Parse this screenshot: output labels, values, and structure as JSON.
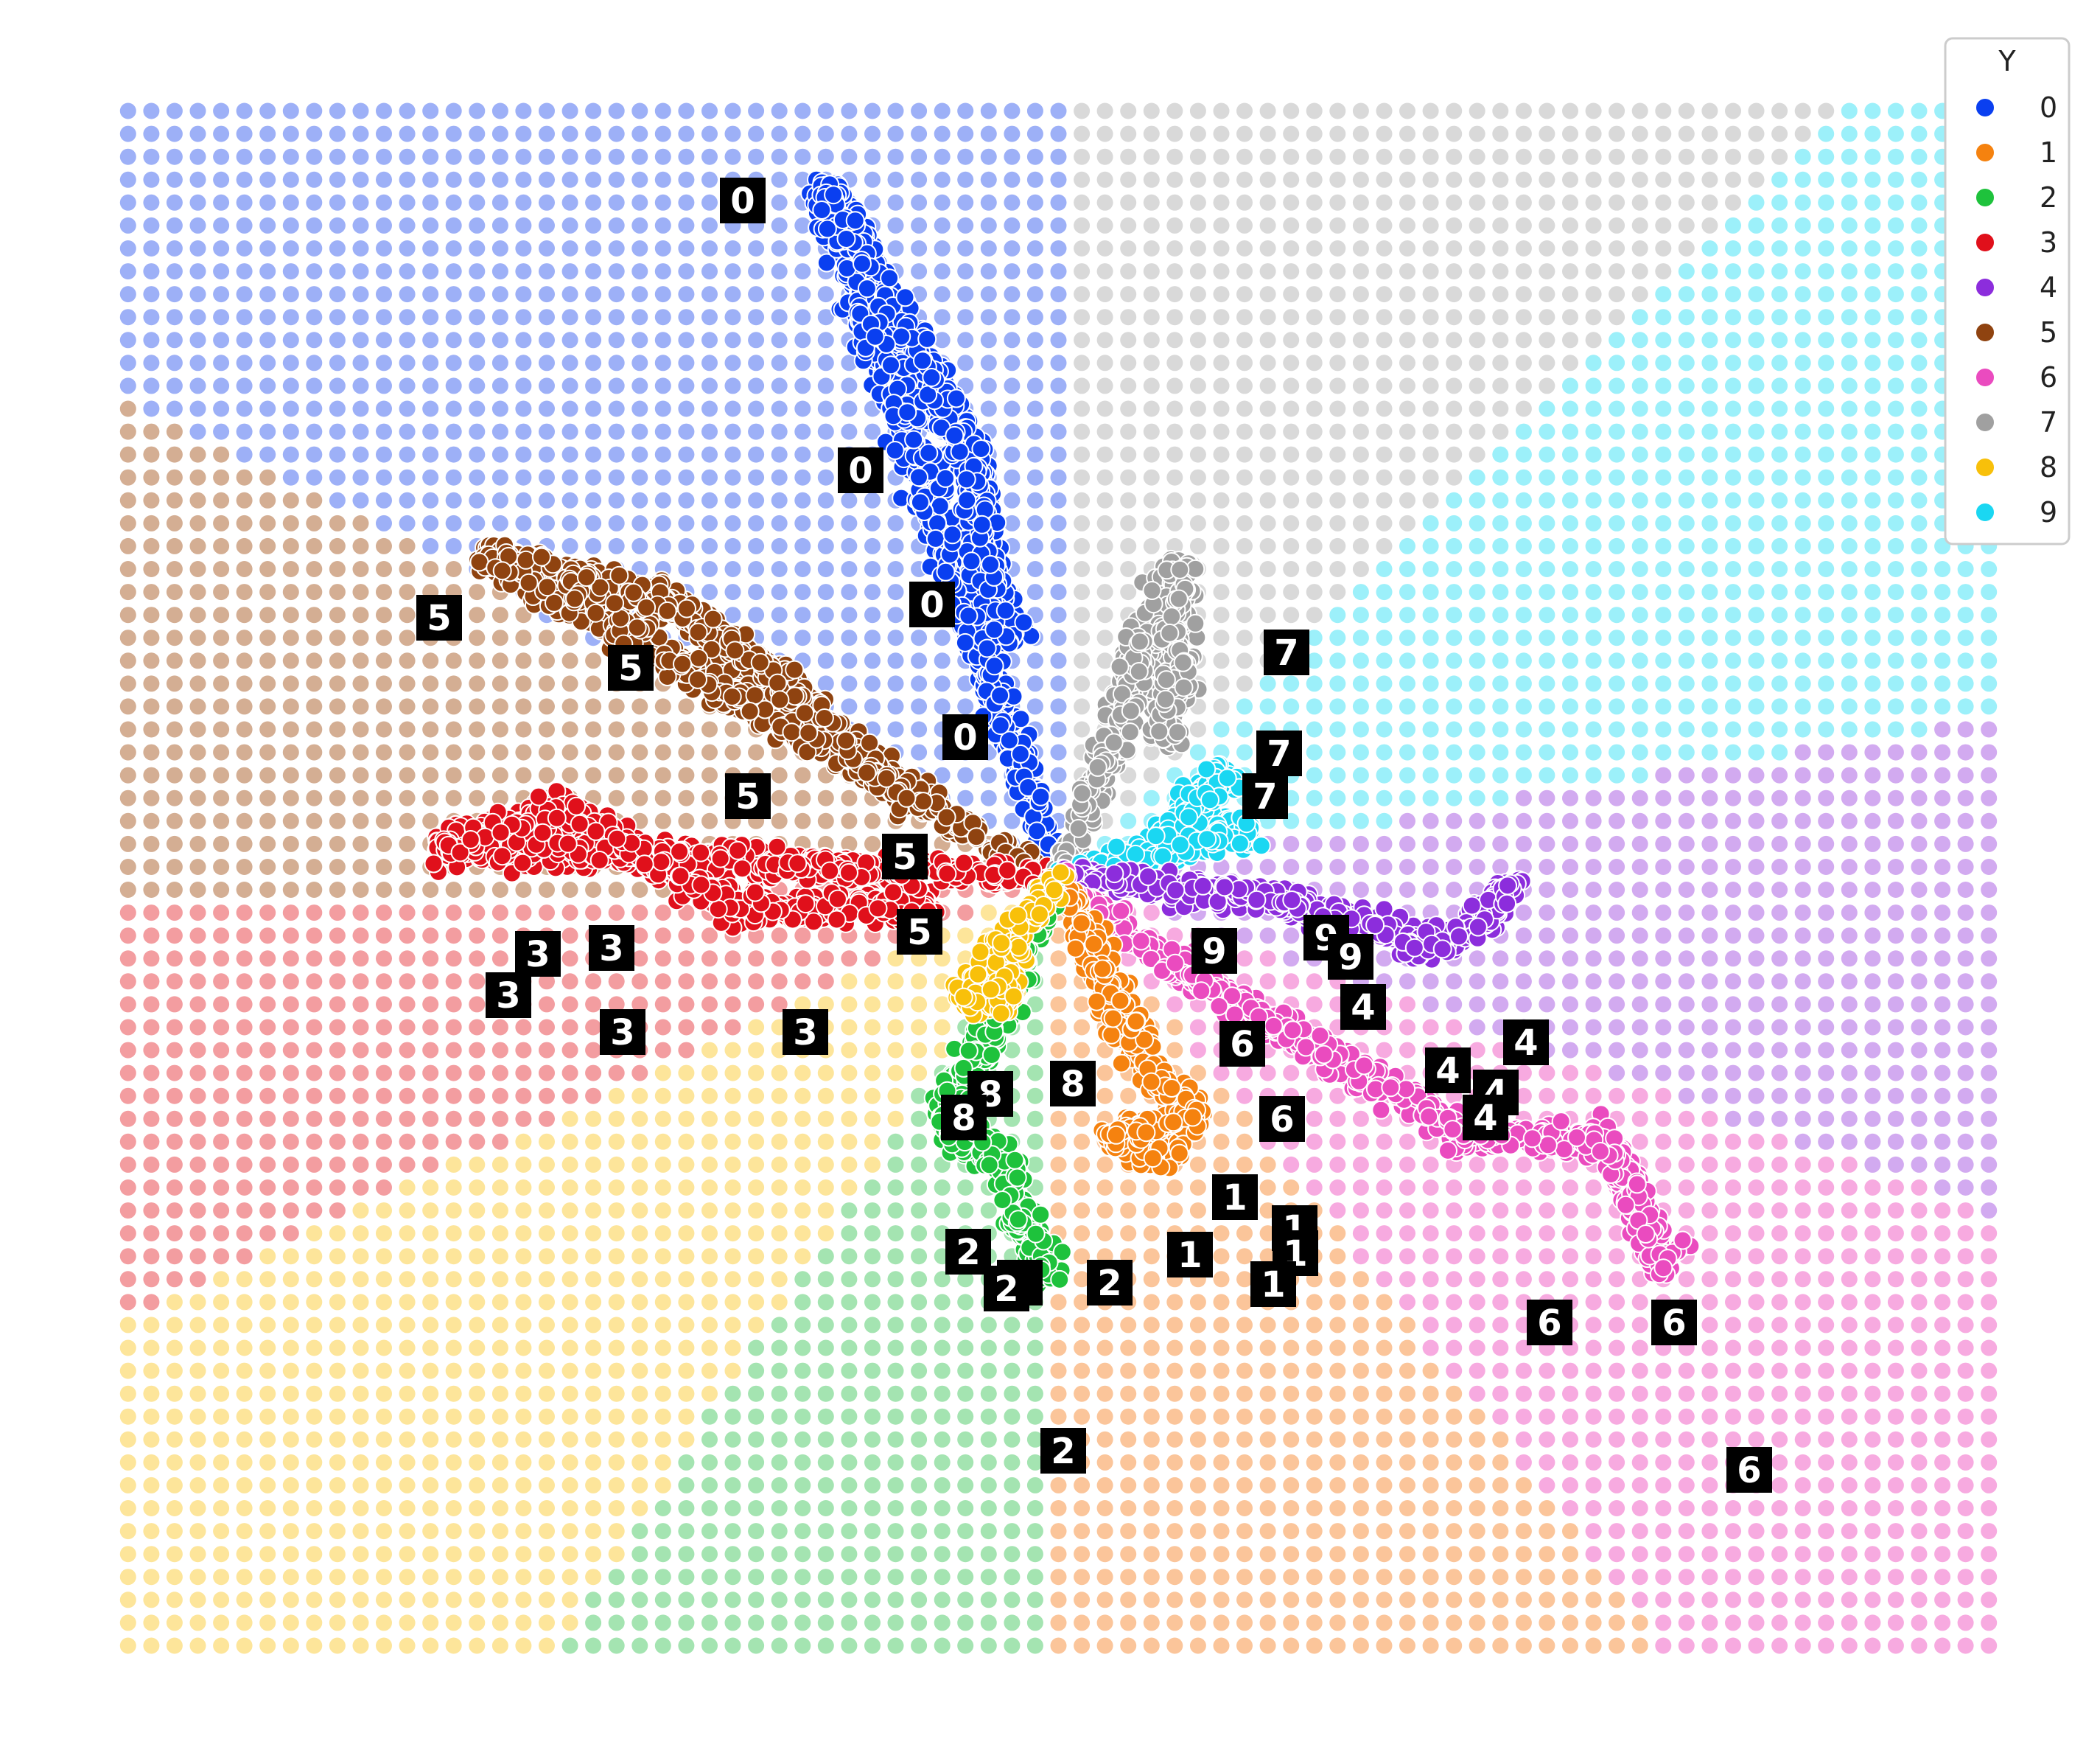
{
  "chart_data": {
    "type": "scatter",
    "title": "",
    "xlabel": "",
    "ylabel": "",
    "axes_visible": false,
    "xlim": [
      -1.0,
      1.0
    ],
    "ylim": [
      -0.93,
      0.93
    ],
    "legend": {
      "title": "Y",
      "placement": "top-right",
      "entries": [
        {
          "label": "0",
          "color": "#0a3ff0"
        },
        {
          "label": "1",
          "color": "#f5820f"
        },
        {
          "label": "2",
          "color": "#1ec23c"
        },
        {
          "label": "3",
          "color": "#e0101b"
        },
        {
          "label": "4",
          "color": "#8c2ddc"
        },
        {
          "label": "5",
          "color": "#8f4310"
        },
        {
          "label": "6",
          "color": "#ea4bbf"
        },
        {
          "label": "7",
          "color": "#a0a0a0"
        },
        {
          "label": "8",
          "color": "#f8c00a"
        },
        {
          "label": "9",
          "color": "#1ad7f2"
        }
      ]
    },
    "background_grid": {
      "description": "decision-region grid of class-colored dots",
      "cols": 81,
      "rows": 68,
      "regions": [
        {
          "label": "0",
          "color": "#9db0f7"
        },
        {
          "label": "1",
          "color": "#fbc59a"
        },
        {
          "label": "2",
          "color": "#a4e4b1"
        },
        {
          "label": "3",
          "color": "#f39da0"
        },
        {
          "label": "4",
          "color": "#d2aaf0"
        },
        {
          "label": "5",
          "color": "#d4ae93"
        },
        {
          "label": "6",
          "color": "#f7aae0"
        },
        {
          "label": "7",
          "color": "#d9d9d9"
        },
        {
          "label": "8",
          "color": "#fde59a"
        },
        {
          "label": "9",
          "color": "#9cf0fa"
        }
      ]
    },
    "series": [
      {
        "name": "0",
        "points": [
          [
            0.0,
            0.0
          ],
          [
            -0.25,
            0.83
          ],
          [
            -0.09,
            0.5
          ],
          [
            -0.08,
            0.39
          ],
          [
            -0.05,
            0.28
          ]
        ]
      },
      {
        "name": "1",
        "points": [
          [
            0.0,
            0.0
          ],
          [
            0.09,
            -0.22
          ],
          [
            0.15,
            -0.29
          ],
          [
            0.05,
            -0.31
          ],
          [
            0.13,
            -0.33
          ]
        ]
      },
      {
        "name": "2",
        "points": [
          [
            0.0,
            0.0
          ],
          [
            -0.12,
            -0.3
          ],
          [
            -0.06,
            -0.34
          ],
          [
            -0.01,
            -0.48
          ]
        ]
      },
      {
        "name": "3",
        "points": [
          [
            0.0,
            0.0
          ],
          [
            -0.66,
            0.04
          ],
          [
            -0.52,
            0.08
          ],
          [
            -0.33,
            -0.04
          ],
          [
            -0.13,
            -0.03
          ]
        ]
      },
      {
        "name": "4",
        "points": [
          [
            0.0,
            0.0
          ],
          [
            0.21,
            -0.02
          ],
          [
            0.41,
            -0.08
          ],
          [
            0.46,
            -0.04
          ],
          [
            0.48,
            0.0
          ]
        ]
      },
      {
        "name": "5",
        "points": [
          [
            0.0,
            0.0
          ],
          [
            -0.61,
            0.39
          ],
          [
            -0.41,
            0.33
          ],
          [
            -0.28,
            0.22
          ],
          [
            -0.15,
            0.09
          ]
        ]
      },
      {
        "name": "6",
        "points": [
          [
            0.0,
            0.0
          ],
          [
            0.13,
            -0.11
          ],
          [
            0.44,
            -0.31
          ],
          [
            0.58,
            -0.31
          ],
          [
            0.65,
            -0.47
          ]
        ]
      },
      {
        "name": "7",
        "points": [
          [
            0.0,
            0.0
          ],
          [
            0.13,
            0.38
          ],
          [
            0.12,
            0.2
          ],
          [
            0.11,
            0.16
          ]
        ]
      },
      {
        "name": "8",
        "points": [
          [
            0.0,
            0.0
          ],
          [
            -0.1,
            -0.15
          ],
          [
            -0.05,
            -0.12
          ],
          [
            -0.07,
            -0.16
          ]
        ]
      },
      {
        "name": "9",
        "points": [
          [
            0.0,
            0.0
          ],
          [
            0.21,
            0.06
          ],
          [
            0.11,
            0.05
          ],
          [
            0.18,
            0.13
          ]
        ]
      }
    ],
    "annotations": [
      {
        "label": "0"
      },
      {
        "label": "0"
      },
      {
        "label": "0"
      },
      {
        "label": "0"
      },
      {
        "label": "5"
      },
      {
        "label": "5"
      },
      {
        "label": "5"
      },
      {
        "label": "5"
      },
      {
        "label": "5"
      },
      {
        "label": "3"
      },
      {
        "label": "3"
      },
      {
        "label": "3"
      },
      {
        "label": "3"
      },
      {
        "label": "3"
      },
      {
        "label": "7"
      },
      {
        "label": "7"
      },
      {
        "label": "7"
      },
      {
        "label": "9"
      },
      {
        "label": "9"
      },
      {
        "label": "9"
      },
      {
        "label": "4"
      },
      {
        "label": "4"
      },
      {
        "label": "4"
      },
      {
        "label": "4"
      },
      {
        "label": "4"
      },
      {
        "label": "2"
      },
      {
        "label": "2"
      },
      {
        "label": "2"
      },
      {
        "label": "2"
      },
      {
        "label": "2"
      },
      {
        "label": "8"
      },
      {
        "label": "8"
      },
      {
        "label": "8"
      },
      {
        "label": "1"
      },
      {
        "label": "1"
      },
      {
        "label": "1"
      },
      {
        "label": "1"
      },
      {
        "label": "1"
      },
      {
        "label": "6"
      },
      {
        "label": "6"
      },
      {
        "label": "6"
      },
      {
        "label": "6"
      },
      {
        "label": "6"
      }
    ]
  }
}
